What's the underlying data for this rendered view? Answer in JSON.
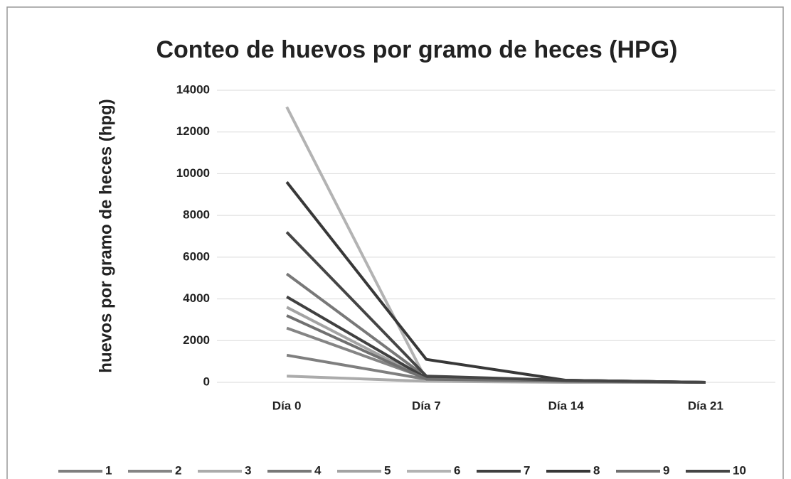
{
  "chart_data": {
    "type": "line",
    "title": "Conteo de huevos por gramo de heces (HPG)",
    "y_label": "huevos por gramo de heces (hpg)",
    "categories": [
      "Día 0",
      "Día 7",
      "Día 14",
      "Día 21"
    ],
    "series": [
      {
        "name": "1",
        "color": "#7f7f7f",
        "values": [
          1300,
          150,
          50,
          0
        ]
      },
      {
        "name": "2",
        "color": "#858585",
        "values": [
          2600,
          200,
          50,
          0
        ]
      },
      {
        "name": "3",
        "color": "#ababab",
        "values": [
          300,
          50,
          0,
          0
        ]
      },
      {
        "name": "4",
        "color": "#787878",
        "values": [
          5200,
          250,
          100,
          0
        ]
      },
      {
        "name": "5",
        "color": "#a3a3a3",
        "values": [
          3600,
          150,
          50,
          0
        ]
      },
      {
        "name": "6",
        "color": "#b3b3b3",
        "values": [
          13200,
          100,
          50,
          0
        ]
      },
      {
        "name": "7",
        "color": "#404040",
        "values": [
          4100,
          200,
          100,
          0
        ]
      },
      {
        "name": "8",
        "color": "#383838",
        "values": [
          9600,
          1100,
          100,
          0
        ]
      },
      {
        "name": "9",
        "color": "#707070",
        "values": [
          3200,
          150,
          50,
          0
        ]
      },
      {
        "name": "10",
        "color": "#454545",
        "values": [
          7200,
          300,
          100,
          0
        ]
      }
    ],
    "ylim": [
      0,
      14000
    ],
    "yticks": [
      0,
      2000,
      4000,
      6000,
      8000,
      10000,
      12000,
      14000
    ],
    "grid": true
  }
}
